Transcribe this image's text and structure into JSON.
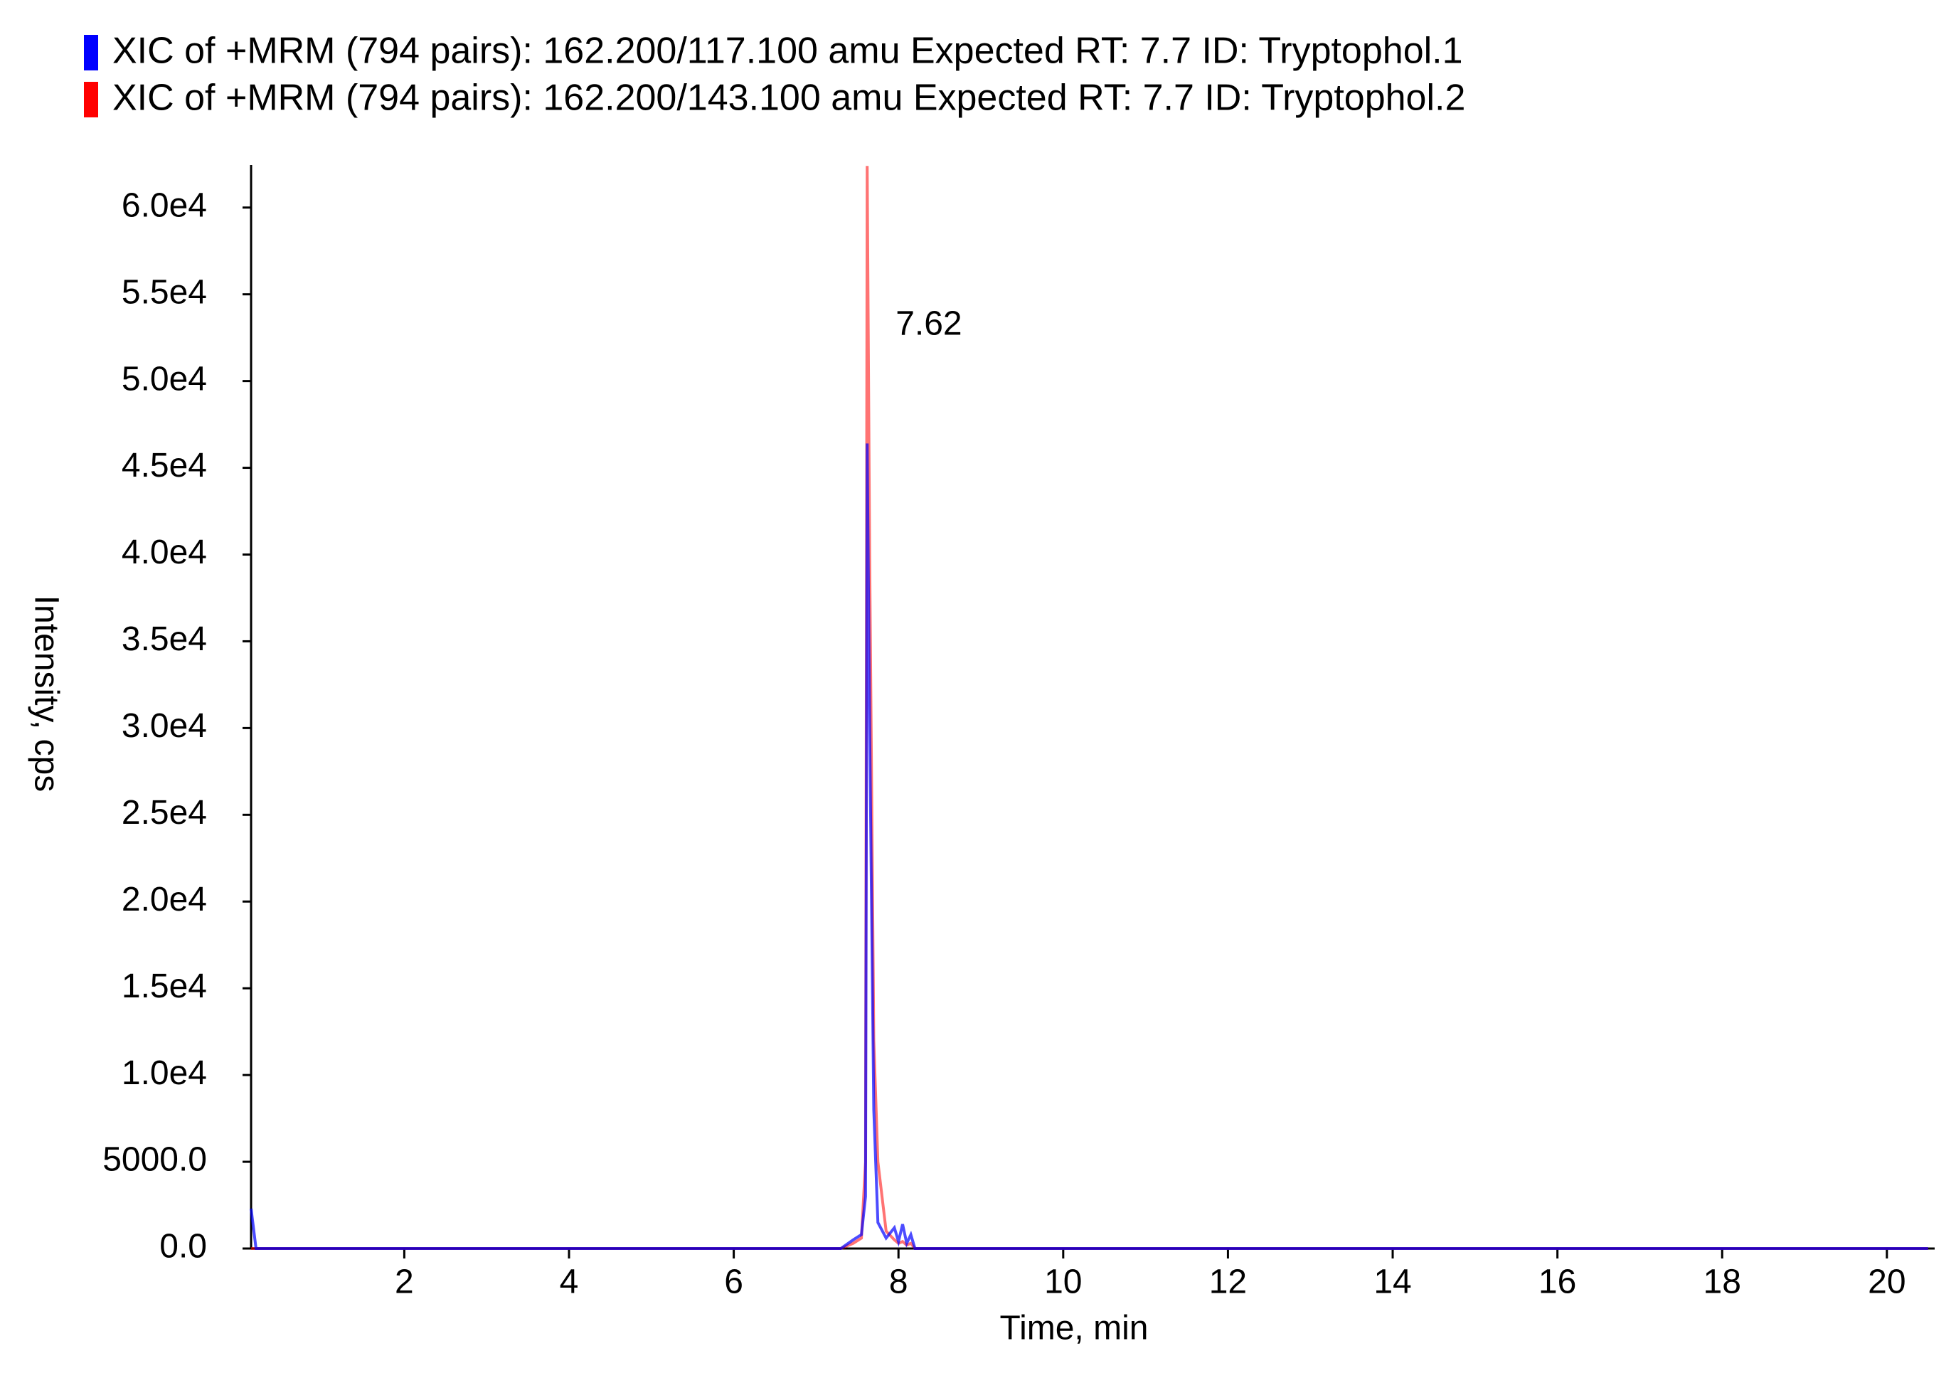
{
  "chart_data": {
    "type": "line",
    "series": [
      {
        "name": "XIC of +MRM (794 pairs): 162.200/117.100 amu Expected RT: 7.7 ID: Tryptophol.1",
        "color": "#0000ff",
        "x": [
          0.14,
          0.2,
          7.3,
          7.45,
          7.55,
          7.6,
          7.62,
          7.65,
          7.7,
          7.75,
          7.85,
          7.95,
          8.0,
          8.05,
          8.1,
          8.15,
          8.2,
          20.5
        ],
        "values": [
          2300,
          0,
          0,
          500,
          800,
          3000,
          46400,
          30000,
          8000,
          1500,
          600,
          1200,
          400,
          1400,
          300,
          800,
          0,
          0
        ]
      },
      {
        "name": "XIC of +MRM (794 pairs): 162.200/143.100 amu Expected RT: 7.7 ID: Tryptophol.2",
        "color": "#ff0000",
        "x": [
          0.14,
          0.2,
          7.3,
          7.45,
          7.55,
          7.6,
          7.62,
          7.65,
          7.7,
          7.75,
          7.85,
          7.95,
          8.0,
          8.05,
          8.1,
          8.15,
          8.2,
          20.5
        ],
        "values": [
          0,
          0,
          0,
          300,
          600,
          5000,
          62400,
          40000,
          12000,
          5000,
          1000,
          500,
          300,
          400,
          200,
          300,
          0,
          0
        ]
      }
    ],
    "peak_label": "7.62",
    "xlabel": "Time, min",
    "ylabel": "Intensity, cps",
    "xlim": [
      0.14,
      20.58
    ],
    "xticks": [
      2,
      4,
      6,
      8,
      10,
      12,
      14,
      16,
      18,
      20
    ],
    "ylim": [
      0,
      62450
    ],
    "yticks": [
      {
        "value": 0,
        "label": "0.0"
      },
      {
        "value": 5000,
        "label": "5000.0"
      },
      {
        "value": 10000,
        "label": "1.0e4"
      },
      {
        "value": 15000,
        "label": "1.5e4"
      },
      {
        "value": 20000,
        "label": "2.0e4"
      },
      {
        "value": 25000,
        "label": "2.5e4"
      },
      {
        "value": 30000,
        "label": "3.0e4"
      },
      {
        "value": 35000,
        "label": "3.5e4"
      },
      {
        "value": 40000,
        "label": "4.0e4"
      },
      {
        "value": 45000,
        "label": "4.5e4"
      },
      {
        "value": 50000,
        "label": "5.0e4"
      },
      {
        "value": 55000,
        "label": "5.5e4"
      },
      {
        "value": 60000,
        "label": "6.0e4"
      }
    ]
  }
}
